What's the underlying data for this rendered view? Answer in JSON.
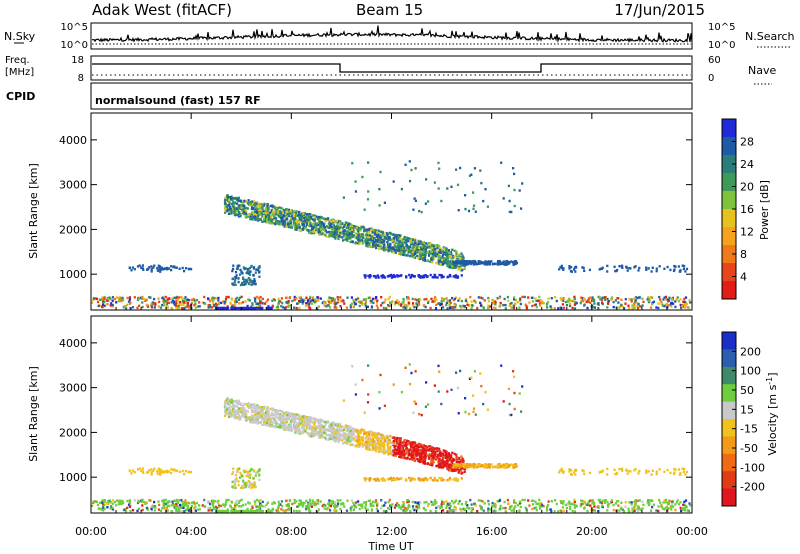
{
  "header": {
    "title": "Adak West (fitACF)",
    "beam": "Beam 15",
    "date": "17/Jun/2015"
  },
  "noise_panel": {
    "left_label": "N.Sky",
    "left_ticks": [
      "10^5",
      "10^0"
    ],
    "right_label": "N.Search",
    "right_ticks": [
      "10^5",
      "10^0"
    ]
  },
  "freq_panel": {
    "left_label_line1": "Freq.",
    "left_label_line2": "[MHz]",
    "left_ticks": [
      "18",
      "8"
    ],
    "right_label": "Nave",
    "right_ticks": [
      "60",
      "0"
    ]
  },
  "cpid_panel": {
    "label": "CPID",
    "text": "normalsound (fast) 157 RF"
  },
  "chart_data": [
    {
      "type": "heatmap",
      "name": "power",
      "ylabel": "Slant Range [km]",
      "ylim": [
        200,
        4600
      ],
      "yticks": [
        1000,
        2000,
        3000,
        4000
      ],
      "xlim": [
        0,
        24
      ],
      "colorbar": {
        "label": "Power [dB]",
        "ticks": [
          4,
          8,
          12,
          16,
          20,
          24,
          28
        ],
        "colors": [
          "#1e2bd6",
          "#1f5aa6",
          "#2a7d7a",
          "#3d9a58",
          "#7fc33d",
          "#e6c21f",
          "#f5a21e",
          "#f07a18",
          "#e8461a",
          "#e01e16"
        ]
      }
    },
    {
      "type": "heatmap",
      "name": "velocity",
      "ylabel": "Slant Range [km]",
      "ylim": [
        200,
        4600
      ],
      "yticks": [
        1000,
        2000,
        3000,
        4000
      ],
      "xlim": [
        0,
        24
      ],
      "xticks": [
        "00:00",
        "04:00",
        "08:00",
        "12:00",
        "16:00",
        "20:00",
        "00:00"
      ],
      "xlabel": "Time UT",
      "colorbar": {
        "label_main": "Velocity",
        "label_unit": "[m s",
        "label_exp": "-1",
        "label_close": "]",
        "ticks": [
          "200",
          "100",
          "50",
          "15",
          "-15",
          "-50",
          "-100",
          "-200"
        ],
        "colors": [
          "#1a2fc8",
          "#2b5eae",
          "#3f8a6a",
          "#6ccf3b",
          "#c9c9c9",
          "#f1c21d",
          "#f39a18",
          "#ef6a15",
          "#e03a16",
          "#e0161e"
        ]
      }
    }
  ]
}
